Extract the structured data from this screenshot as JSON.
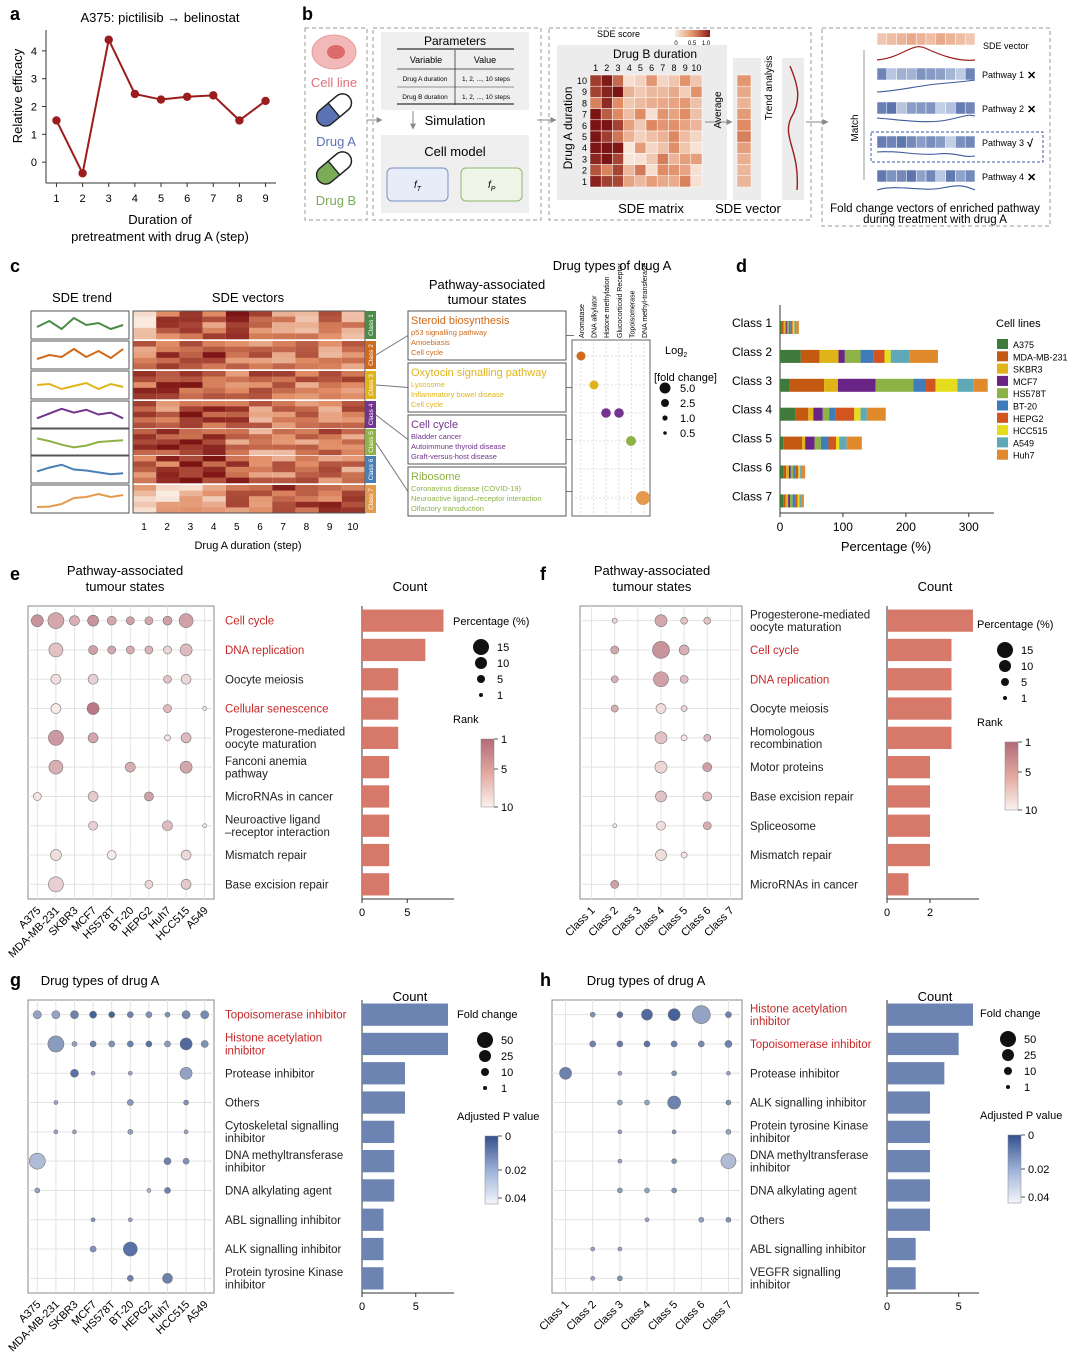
{
  "panel_letters": [
    "a",
    "b",
    "c",
    "d",
    "e",
    "f",
    "g",
    "h"
  ],
  "colors": {
    "dark_red": "#9b1c1c",
    "red_text": "#c62828",
    "salmon_bar": "#d6796b",
    "blue_bar": "#6d84b3",
    "rank_hi": "#b46a78",
    "pval_hi": "#34508f",
    "green": "#4b8b46",
    "orange": "#cf6a1c",
    "yellow": "#e0b419",
    "purple": "#72348e",
    "lime": "#8db246",
    "steel": "#4a7fb5",
    "tan": "#e49a4d"
  },
  "panel_a": {
    "title": "A375: pictilisib → belinostat",
    "ylabel": "Relative efficacy",
    "xlabel1": "Duration of",
    "xlabel2": "pretreatment with drug A (step)"
  },
  "panel_b": {
    "cell_line": "Cell line",
    "drug_a": "Drug A",
    "drug_b": "Drug B",
    "params_title": "Parameters",
    "col_variable": "Variable",
    "col_value": "Value",
    "row1_var": "Drug A duration",
    "row1_val": "1, 2, ..., 10 steps",
    "row2_var": "Drug B duration",
    "row2_val": "1, 2, ..., 10 steps",
    "simulation": "Simulation",
    "cell_model": "Cell model",
    "f_t": "f",
    "f_t_sub": "T",
    "f_p": "f",
    "f_p_sub": "P",
    "sde_score": "SDE score",
    "sde_ticks": [
      "0",
      "0.5",
      "1.0"
    ],
    "drug_b_duration": "Drug B duration",
    "drug_a_duration": "Drug A duration",
    "matrix_cols": [
      "1",
      "2",
      "3",
      "4",
      "5",
      "6",
      "7",
      "8",
      "9",
      "10"
    ],
    "matrix_rows": [
      "10",
      "9",
      "8",
      "7",
      "6",
      "5",
      "4",
      "3",
      "2",
      "1"
    ],
    "sde_matrix": "SDE matrix",
    "average": "Average",
    "sde_vector": "SDE vector",
    "trend_analysis": "Trend analysis",
    "match": "Match",
    "sde_vector_label": "SDE vector",
    "pathways": [
      {
        "label": "Pathway 1",
        "mark": "✕"
      },
      {
        "label": "Pathway 2",
        "mark": "✕"
      },
      {
        "label": "Pathway 3",
        "mark": "√"
      },
      {
        "label": "Pathway 4",
        "mark": "✕"
      }
    ],
    "caption1": "Fold change vectors of enriched pathway",
    "caption2": "during treatment with drug A"
  },
  "panel_c": {
    "sde_trend": "SDE trend",
    "sde_vectors": "SDE vectors",
    "classes": [
      "Class 1",
      "Class 2",
      "Class 3",
      "Class 4",
      "Class 5",
      "Class 6",
      "Class 7"
    ],
    "xticks": [
      "1",
      "2",
      "3",
      "4",
      "5",
      "6",
      "7",
      "8",
      "9",
      "10"
    ],
    "xlabel": "Drug A duration (step)",
    "pathway_title1": "Pathway-associated",
    "pathway_title2": "tumour states",
    "boxes": [
      {
        "head": "Steroid biosynthesis",
        "items": [
          "p53 signalling pathway",
          "Amoebiasis",
          "Cell cycle"
        ]
      },
      {
        "head": "Oxytocin signalling pathway",
        "items": [
          "Lysosome",
          "Inflammatory bowel disease",
          "Cell cycle"
        ]
      },
      {
        "head": "Cell cycle",
        "items": [
          "Bladder cancer",
          "Autoimmune thyroid disease",
          "Graft-versus-host disease"
        ]
      },
      {
        "head": "Ribosome",
        "items": [
          "Coronavirus disease (COVID-19)",
          "Neuroactive ligand–receptor interaction",
          "Olfactory transduction"
        ]
      }
    ],
    "drug_types_title": "Drug types of drug A",
    "drug_types": [
      "Aromatase",
      "DNA alkylator",
      "Histone methylation",
      "Glucocorticoid Receptor",
      "Topoisomerase",
      "DNA methyl-transferase"
    ],
    "log2_label": "Log",
    "log2_sub": "2",
    "fc_label": "[fold change]",
    "size_legend": [
      "5.0",
      "2.5",
      "1.0",
      "0.5"
    ]
  },
  "panel_d": {
    "classes": [
      "Class 1",
      "Class 2",
      "Class 3",
      "Class 4",
      "Class 5",
      "Class 6",
      "Class 7"
    ],
    "xticks": [
      "0",
      "100",
      "200",
      "300"
    ],
    "xlabel": "Percentage (%)",
    "legend_title": "Cell lines",
    "cell_lines": [
      "A375",
      "MDA-MB-231",
      "SKBR3",
      "MCF7",
      "HS578T",
      "BT-20",
      "HEPG2",
      "HCC515",
      "A549",
      "Huh7"
    ]
  },
  "panel_e": {
    "title1": "Pathway-associated",
    "title2": "tumour states",
    "pathways": [
      "Cell cycle",
      "DNA replication",
      "Oocyte meiosis",
      "Cellular senescence",
      "Progesterone-mediated|oocyte maturation",
      "Fanconi anemia|pathway",
      "MicroRNAs in cancer",
      "Neuroactive ligand|–receptor interaction",
      "Mismatch repair",
      "Base excision repair"
    ],
    "columns": [
      "A375",
      "MDA-MB-231",
      "SKBR3",
      "MCF7",
      "HS578T",
      "BT-20",
      "HEPG2",
      "Huh7",
      "HCC515",
      "A549"
    ],
    "count_title": "Count",
    "xticks": [
      "0",
      "5"
    ],
    "pct_title": "Percentage (%)",
    "pct_legend": [
      "15",
      "10",
      "5",
      "1"
    ],
    "rank_title": "Rank",
    "rank_ticks": [
      "1",
      "5",
      "10"
    ]
  },
  "panel_f": {
    "title1": "Pathway-associated",
    "title2": "tumour states",
    "pathways": [
      "Progesterone-mediated|oocyte maturation",
      "Cell cycle",
      "DNA replication",
      "Oocyte meiosis",
      "Homologous|recombination",
      "Motor proteins",
      "Base excision repair",
      "Spliceosome",
      "Mismatch repair",
      "MicroRNAs in cancer"
    ],
    "columns": [
      "Class 1",
      "Class 2",
      "Class 3",
      "Class 4",
      "Class 5",
      "Class 6",
      "Class 7"
    ],
    "count_title": "Count",
    "xticks": [
      "0",
      "2"
    ],
    "pct_title": "Percentage (%)",
    "pct_legend": [
      "15",
      "10",
      "5",
      "1"
    ],
    "rank_title": "Rank",
    "rank_ticks": [
      "1",
      "5",
      "10"
    ]
  },
  "panel_g": {
    "title": "Drug types of drug A",
    "drug_types": [
      "Topoisomerase inhibitor",
      "Histone acetylation|inhibitor",
      "Protease inhibitor",
      "Others",
      "Cytoskeletal signalling|inhibitor",
      "DNA methyltransferase|inhibitor",
      "DNA alkylating agent",
      "ABL signalling inhibitor",
      "ALK signalling inhibitor",
      "Protein tyrosine Kinase|inhibitor"
    ],
    "columns": [
      "A375",
      "MDA-MB-231",
      "SKBR3",
      "MCF7",
      "HS578T",
      "BT-20",
      "HEPG2",
      "Huh7",
      "HCC515",
      "A549"
    ],
    "count_title": "Count",
    "xticks": [
      "0",
      "5"
    ],
    "fc_title": "Fold change",
    "fc_legend": [
      "50",
      "25",
      "10",
      "1"
    ],
    "p_title": "Adjusted P value",
    "p_ticks": [
      "0",
      "0.02",
      "0.04"
    ]
  },
  "panel_h": {
    "title": "Drug types of drug A",
    "drug_types": [
      "Histone acetylation|inhibitor",
      "Topoisomerase inhibitor",
      "Protease inhibitor",
      "ALK signalling inhibitor",
      "Protein tyrosine Kinase|inhibitor",
      "DNA methyltransferase|inhibitor",
      "DNA alkylating agent",
      "Others",
      "ABL signalling inhibitor",
      "VEGFR signalling|inhibitor"
    ],
    "columns": [
      "Class 1",
      "Class 2",
      "Class 3",
      "Class 4",
      "Class 5",
      "Class 6",
      "Class 7"
    ],
    "count_title": "Count",
    "xticks": [
      "0",
      "5"
    ],
    "fc_title": "Fold change",
    "fc_legend": [
      "50",
      "25",
      "10",
      "1"
    ],
    "p_title": "Adjusted P value",
    "p_ticks": [
      "0",
      "0.02",
      "0.04"
    ]
  },
  "chart_data": [
    {
      "id": "a",
      "type": "line",
      "title": "A375: pictilisib → belinostat",
      "xlabel": "Duration of pretreatment with drug A (step)",
      "ylabel": "Relative efficacy",
      "x": [
        1,
        2,
        3,
        4,
        5,
        6,
        7,
        8,
        9
      ],
      "y": [
        1.5,
        -0.4,
        4.4,
        2.45,
        2.25,
        2.35,
        2.4,
        1.5,
        2.2
      ],
      "xlim": [
        0.6,
        9.4
      ],
      "ylim": [
        -0.75,
        4.75
      ],
      "yticks": [
        0,
        1,
        2,
        3,
        4
      ]
    },
    {
      "id": "d",
      "type": "bar",
      "orientation": "horizontal",
      "stacked": true,
      "xlabel": "Percentage (%)",
      "xlim": [
        0,
        340
      ],
      "categories": [
        "Class 1",
        "Class 2",
        "Class 3",
        "Class 4",
        "Class 5",
        "Class 6",
        "Class 7"
      ],
      "series": [
        {
          "name": "A375",
          "values": [
            3,
            33,
            15,
            25,
            5,
            6,
            5
          ]
        },
        {
          "name": "MDA-MB-231",
          "values": [
            3,
            30,
            55,
            20,
            30,
            4,
            4
          ]
        },
        {
          "name": "SKBR3",
          "values": [
            3,
            30,
            22,
            8,
            5,
            4,
            4
          ]
        },
        {
          "name": "MCF7",
          "values": [
            2,
            10,
            60,
            15,
            15,
            3,
            3
          ]
        },
        {
          "name": "HS578T",
          "values": [
            3,
            25,
            60,
            10,
            10,
            4,
            4
          ]
        },
        {
          "name": "BT-20",
          "values": [
            3,
            20,
            20,
            10,
            12,
            4,
            4
          ]
        },
        {
          "name": "HEPG2",
          "values": [
            3,
            18,
            15,
            30,
            12,
            4,
            4
          ]
        },
        {
          "name": "HCC515",
          "values": [
            3,
            10,
            35,
            10,
            5,
            3,
            3
          ]
        },
        {
          "name": "A549",
          "values": [
            3,
            30,
            25,
            10,
            12,
            3,
            3
          ]
        },
        {
          "name": "Huh7",
          "values": [
            4,
            45,
            23,
            30,
            24,
            5,
            4
          ]
        }
      ]
    },
    {
      "id": "e_count",
      "type": "bar",
      "orientation": "horizontal",
      "categories": [
        "Cell cycle",
        "DNA replication",
        "Oocyte meiosis",
        "Cellular senescence",
        "Progesterone-mediated oocyte maturation",
        "Fanconi anemia pathway",
        "MicroRNAs in cancer",
        "Neuroactive ligand –receptor interaction",
        "Mismatch repair",
        "Base excision repair"
      ],
      "values": [
        9,
        7,
        4,
        4,
        4,
        3,
        3,
        3,
        3,
        3
      ],
      "xlim": [
        0,
        9.5
      ]
    },
    {
      "id": "f_count",
      "type": "bar",
      "orientation": "horizontal",
      "categories": [
        "Progesterone-mediated oocyte maturation",
        "Cell cycle",
        "DNA replication",
        "Oocyte meiosis",
        "Homologous recombination",
        "Motor proteins",
        "Base excision repair",
        "Spliceosome",
        "Mismatch repair",
        "MicroRNAs in cancer"
      ],
      "values": [
        4,
        3,
        3,
        3,
        3,
        2,
        2,
        2,
        2,
        1
      ],
      "xlim": [
        0,
        4
      ]
    },
    {
      "id": "g_count",
      "type": "bar",
      "orientation": "horizontal",
      "categories": [
        "Topoisomerase inhibitor",
        "Histone acetylation inhibitor",
        "Protease inhibitor",
        "Others",
        "Cytoskeletal signalling inhibitor",
        "DNA methyltransferase inhibitor",
        "DNA alkylating agent",
        "ABL signalling inhibitor",
        "ALK signalling inhibitor",
        "Protein tyrosine Kinase inhibitor"
      ],
      "values": [
        8,
        8,
        4,
        4,
        3,
        3,
        3,
        2,
        2,
        2
      ],
      "xlim": [
        0,
        8
      ]
    },
    {
      "id": "h_count",
      "type": "bar",
      "orientation": "horizontal",
      "categories": [
        "Histone acetylation inhibitor",
        "Topoisomerase inhibitor",
        "Protease inhibitor",
        "ALK signalling inhibitor",
        "Protein tyrosine Kinase inhibitor",
        "DNA methyltransferase inhibitor",
        "DNA alkylating agent",
        "Others",
        "ABL signalling inhibitor",
        "VEGFR signalling inhibitor"
      ],
      "values": [
        6,
        5,
        4,
        3,
        3,
        3,
        3,
        3,
        2,
        2
      ],
      "xlim": [
        0,
        6
      ]
    }
  ]
}
